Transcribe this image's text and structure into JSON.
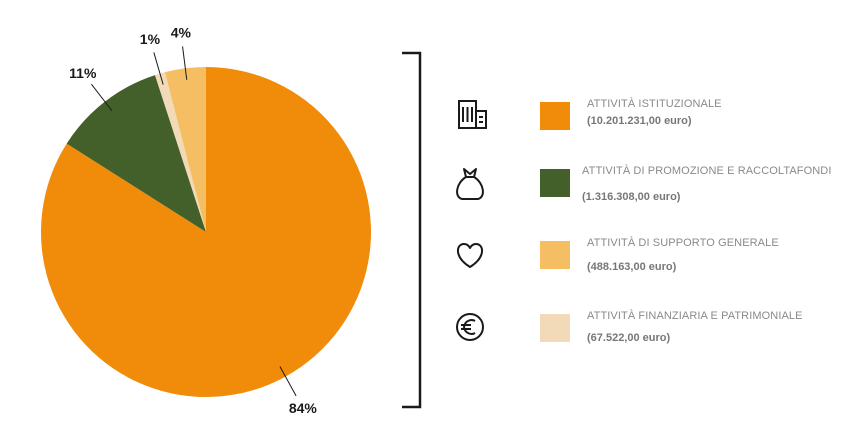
{
  "chart_data": {
    "type": "pie",
    "slices": [
      {
        "label": "84%",
        "value": 84,
        "color": "#f08c0a",
        "legend_name": "ATTIVITÀ ISTITUZIONALE",
        "legend_value": "(10.201.231,00 euro)",
        "icon": "building-icon"
      },
      {
        "label": "11%",
        "value": 11,
        "color": "#44602a",
        "legend_name": "ATTIVITÀ DI PROMOZIONE E RACCOLTAFONDI",
        "legend_value": "(1.316.308,00 euro)",
        "icon": "money-bag-icon"
      },
      {
        "label": "1%",
        "value": 1,
        "color": "#f2d9b8",
        "legend_name": "ATTIVITÀ FINANZIARIA E PATRIMONIALE",
        "legend_value": "(67.522,00 euro)",
        "icon": "euro-coin-icon"
      },
      {
        "label": "4%",
        "value": 4,
        "color": "#f5be62",
        "legend_name": "ATTIVITÀ DI SUPPORTO GENERALE",
        "legend_value": "(488.163,00 euro)",
        "icon": "heart-icon"
      }
    ],
    "legend_order": [
      0,
      1,
      3,
      2
    ],
    "legend_placement": "right"
  }
}
